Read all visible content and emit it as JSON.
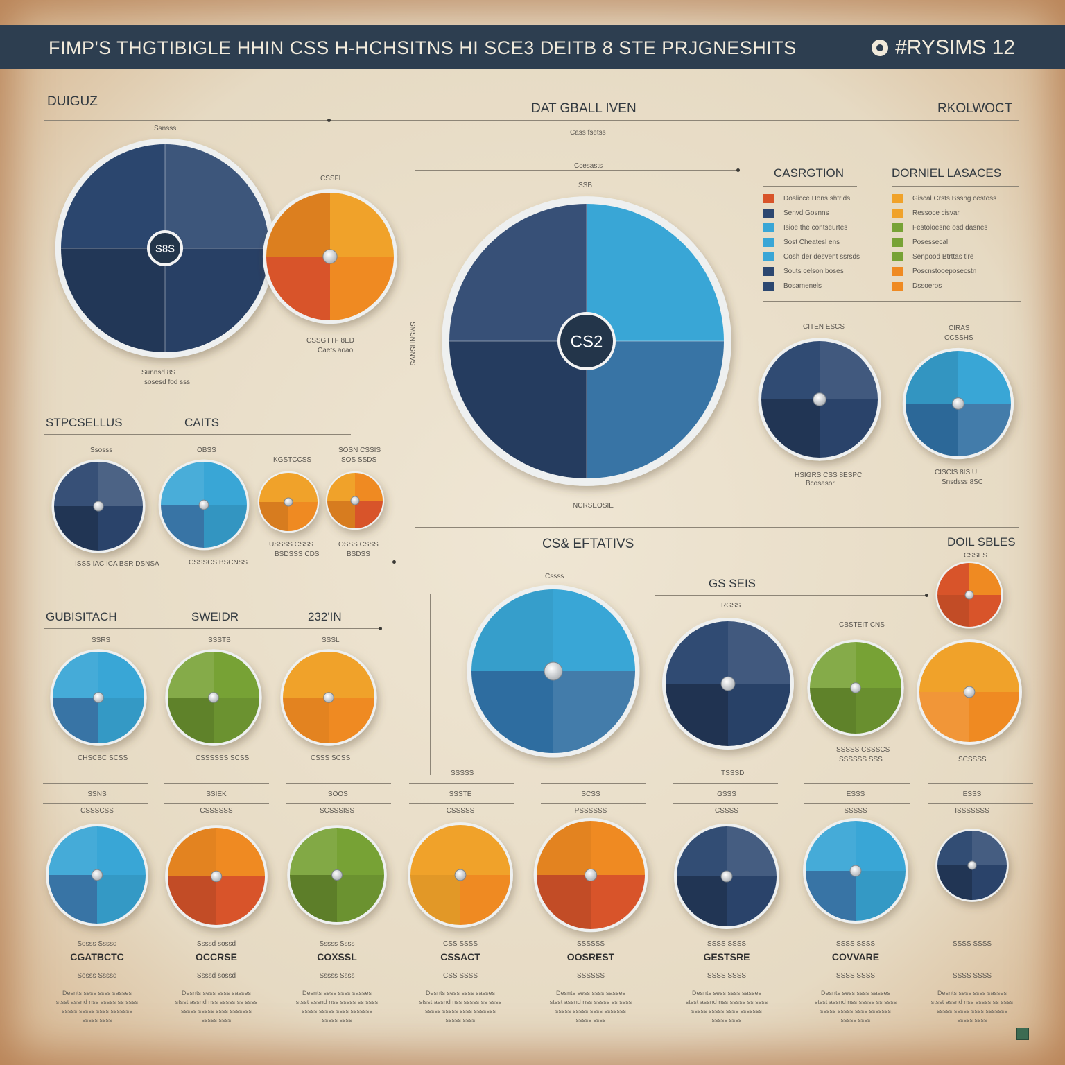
{
  "colors": {
    "navy": "#2c4770",
    "darknavy": "#233850",
    "blue": "#2e6da0",
    "sky": "#39a6d6",
    "orange": "#ef8a22",
    "amber": "#f0a22a",
    "red": "#d8542a",
    "green": "#77a235",
    "header": "#2d3e50"
  },
  "header": {
    "title": "FIMP'S THGTIBIGLE HHIN CSS H-HCHSITNS HI SCE3 DEITB 8 STE PRJGNESHITS",
    "right": "#RYSIMS 12"
  },
  "sections": {
    "top_left": "DUIGUZ",
    "top_center": "DAT GBALL IVEN",
    "top_right": "RKOLWOCT",
    "legend_left": "CASRGTION",
    "legend_right": "DORNIEL LASACES",
    "mid_left_a": "STPCSELLUS",
    "mid_left_b": "CAITS",
    "mid_center": "CS& EFTATIVS",
    "mid_right": "DOIL SBLES",
    "gs": "GS SEIS",
    "low_left_a": "GUBISITACH",
    "low_left_b": "SWEIDR",
    "low_left_c": "232'IN"
  },
  "legend_left_items": [
    {
      "text": "Doslicce Hons shtrids",
      "color": "#d8542a"
    },
    {
      "text": "Senvd Gosnns",
      "color": "#2c4770"
    },
    {
      "text": "Isioe the contseurtes",
      "color": "#39a6d6"
    },
    {
      "text": "Sost Cheatesl ens",
      "color": "#39a6d6"
    },
    {
      "text": "Cosh der desvent ssrsds",
      "color": "#39a6d6"
    },
    {
      "text": "Souts celson boses",
      "color": "#2c4770"
    },
    {
      "text": "Bosamenels",
      "color": "#2c4770"
    }
  ],
  "legend_right_items": [
    {
      "text": "Giscal Crsts Bssng cestoss",
      "color": "#f0a22a"
    },
    {
      "text": "Ressoce cisvar",
      "color": "#f0a22a"
    },
    {
      "text": "Festoloesne osd dasnes",
      "color": "#77a235"
    },
    {
      "text": "Posessecal",
      "color": "#77a235"
    },
    {
      "text": "Senpood Btrttas tlre",
      "color": "#77a235"
    },
    {
      "text": "Poscnstooeposecstn",
      "color": "#ef8a22"
    },
    {
      "text": "Dssoeros",
      "color": "#ef8a22"
    }
  ],
  "big_center_label": "CS2",
  "big_left_label": "S8S",
  "small_labels": {
    "tl_top": "Ssnsss",
    "tl_bottom1": "Sunnsd 8S",
    "tl_bottom2": "sosesd fod sss",
    "orange_top": "CSSFL",
    "orange_bot1": "CSSGTTF 8ED",
    "orange_bot2": "Caets aoao",
    "dat_sub": "Cass fsetss",
    "csc": "Ccesasts",
    "ssb": "SSB",
    "vtext": "SMSNHSNVS",
    "big_bottom": "NCRSEOSIE",
    "rb1_top": "CITEN ESCS",
    "rb1_bot1": "HSIGRS CSS 8ESPC",
    "rb1_bot2": "Bcosasor",
    "rb2_top1": "CIRAS",
    "rb2_top2": "CCSSHS",
    "rb2_bot1": "CISCIS 8IS U",
    "rb2_bot2": "Snsdsss 8SC",
    "m1_top": "Ssosss",
    "m1_bot": "ISSS IAC ICA BSR DSNSA",
    "m2_top": "OBSS",
    "m2_bot": "CSSSCS BSCNSS",
    "m3_top": "KGSTCCSS",
    "m3_bot1": "USSSS CSSS",
    "m3_bot2": "BSDSSS CDS",
    "m4_top1": "SOSN CSSIS",
    "m4_top2": "SOS SSDS",
    "m4_bot1": "OSSS CSSS",
    "m4_bot2": "BSDSS",
    "cs_top": "Cssss",
    "gs_sub": "RGSS",
    "gs2_sub": "CBSTEIT CNS",
    "g1_top": "SSRS",
    "g1_bot": "CHSCBC SCSS",
    "g2_top": "SSSTB",
    "g2_bot": "CSSSSSS SCSS",
    "g3_top": "SSSL",
    "g3_bot": "CSSS SCSS",
    "gs_bot1": "SSSSS CSSSCS",
    "gs_bot2": "SSSSSS SSS",
    "red_sub": "CSSES",
    "orange_r_bot": "SCSSSS",
    "nav_c": "TSSSD",
    "gb": "SSSSS"
  },
  "bottom_row": [
    {
      "top": "SSNS",
      "cap": "CGATBCTC",
      "sub": "CSSSCSS",
      "color": "sky"
    },
    {
      "top": "SSIEK",
      "cap": "OCCRSE",
      "sub": "CSSSSSS",
      "color": "red"
    },
    {
      "top": "ISOOS",
      "cap": "COXSSL",
      "sub": "SCSSSISS",
      "color": "green"
    },
    {
      "top": "SSSTE",
      "cap": "CSSACT",
      "sub": "CSSSSS",
      "color": "amber"
    },
    {
      "top": "SCSS",
      "cap": "OOSREST",
      "sub": "PSSSSSS",
      "color": "red"
    },
    {
      "top": "GSSS",
      "cap": "GESTSRE",
      "sub": "CSSSS",
      "color": "navy"
    },
    {
      "top": "ESSS",
      "cap": "COVVARE",
      "sub": "SSSSS",
      "color": "sky"
    },
    {
      "top": "ESSS",
      "cap": "",
      "sub": "ISSSSSSS",
      "color": "navy"
    }
  ],
  "bottom_captions_row2": [
    "Sosss Ssssd",
    "Ssssd sossd",
    "Sssss Ssss",
    "CSS SSSS",
    "SSSSSS",
    "SSSS SSSS",
    "SSSS SSSS",
    "SSSS SSSS"
  ],
  "bottom_paragraph": "Desnts sess ssss sasses stsst assnd nss sssss ss ssss sssss sssss ssss sssssss sssss ssss",
  "chart_data": {
    "type": "pie",
    "title": "FIMP'S THGTIBIGLE HHIN CSS H-HCHSITNS HI SCE3 DEITB 8 STE PRJGNESHITS",
    "series": [
      {
        "label": "S8S",
        "values": [
          25,
          25,
          25,
          25
        ]
      },
      {
        "label": "CSSFL",
        "values": [
          25,
          25,
          25,
          25
        ]
      },
      {
        "label": "CS2",
        "values": [
          25,
          25,
          25,
          25
        ]
      }
    ]
  }
}
